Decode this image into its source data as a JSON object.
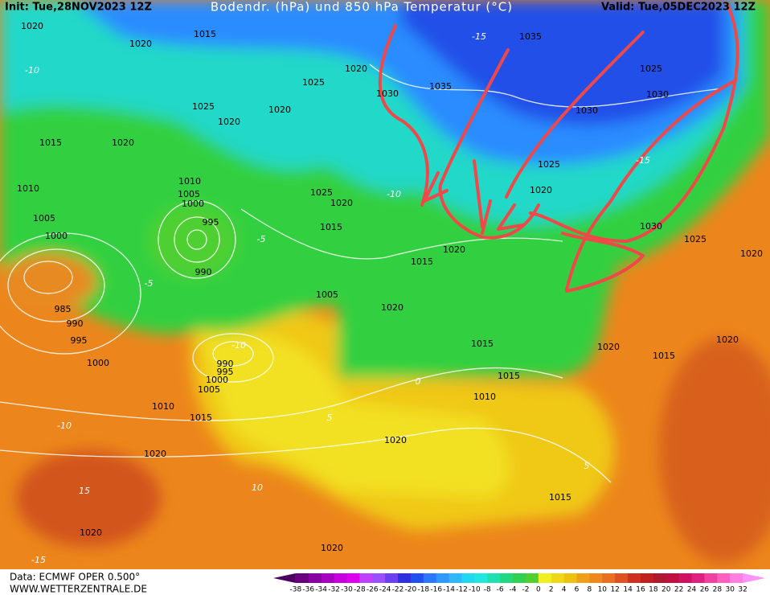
{
  "header": {
    "init": "Init: Tue,28NOV2023 12Z",
    "title": "Bodendr. (hPa) und 850 hPa Temperatur (°C)",
    "valid": "Valid: Tue,05DEC2023 12Z"
  },
  "isobar_labels": [
    "1020",
    "1020",
    "1015",
    "1035",
    "1025",
    "1020",
    "1030",
    "1035",
    "1025",
    "1030",
    "1030",
    "1025",
    "1020",
    "1020",
    "1015",
    "1020",
    "1025",
    "1010",
    "1005",
    "1000",
    "1010",
    "1005",
    "1000",
    "995",
    "990",
    "1025",
    "1020",
    "1015",
    "1015",
    "1020",
    "1020",
    "1030",
    "1025",
    "1020",
    "1005",
    "1020",
    "985",
    "990",
    "995",
    "1000",
    "990",
    "995",
    "1000",
    "1005",
    "1010",
    "1015",
    "1015",
    "1020",
    "1015",
    "1020",
    "1015",
    "1010",
    "1020",
    "1020",
    "1015",
    "1020",
    "1020"
  ],
  "temperature_labels": [
    "-10",
    "-15",
    "-5",
    "-10",
    "-5",
    "0",
    "5",
    "10",
    "15",
    "-15",
    "-10",
    "5",
    "-15",
    "-10"
  ],
  "colorbar": {
    "labels": [
      -38,
      -36,
      -34,
      -32,
      -30,
      -28,
      -26,
      -24,
      -22,
      -20,
      -18,
      -16,
      -14,
      -12,
      -10,
      -8,
      -6,
      -4,
      -2,
      0,
      2,
      4,
      6,
      8,
      10,
      12,
      14,
      16,
      18,
      20,
      22,
      24,
      26,
      28,
      30,
      32
    ],
    "colors": [
      "#4b0060",
      "#6a0080",
      "#8a00a0",
      "#a800c0",
      "#c800e0",
      "#e000f0",
      "#c040ff",
      "#9a50ff",
      "#6a40f0",
      "#3030e0",
      "#2050f0",
      "#2a78ff",
      "#3098ff",
      "#30b8ff",
      "#20d8f0",
      "#20e8e0",
      "#20e0b0",
      "#20d880",
      "#30d050",
      "#50d030",
      "#f0f020",
      "#f0d818",
      "#f0c010",
      "#f0a018",
      "#f08820",
      "#e87020",
      "#e05020",
      "#d03020",
      "#c02020",
      "#b01830",
      "#c01040",
      "#d01060",
      "#e02080",
      "#f040a0",
      "#ff60c0",
      "#ff80e0",
      "#ff90ff"
    ]
  },
  "footer": {
    "data": "Data: ECMWF OPER 0.500°",
    "site": "WWW.WETTERZENTRALE.DE"
  }
}
